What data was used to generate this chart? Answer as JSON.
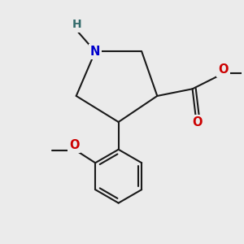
{
  "background_color": "#ebebeb",
  "bond_color": "#1a1a1a",
  "bond_width": 1.5,
  "N_color": "#0000cc",
  "O_color": "#cc0000",
  "H_color": "#336b6b",
  "fig_width": 3.0,
  "fig_height": 3.0,
  "dpi": 100,
  "label_fontsize": 10.5,
  "xlim": [
    -1.6,
    1.8
  ],
  "ylim": [
    -1.7,
    1.4
  ]
}
